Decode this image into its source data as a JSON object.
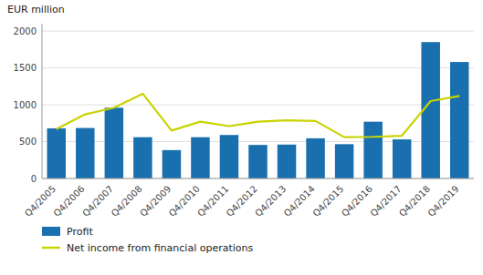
{
  "chart_data": {
    "type": "bar",
    "ylabel": "EUR million",
    "categories": [
      "Q4/2005",
      "Q4/2006",
      "Q4/2007",
      "Q4/2008",
      "Q4/2009",
      "Q4/2010",
      "Q4/2011",
      "Q4/2012",
      "Q4/2013",
      "Q4/2014",
      "Q4/2015",
      "Q4/2016",
      "Q4/2017",
      "Q4/2018",
      "Q4/2019"
    ],
    "series": [
      {
        "name": "Profit",
        "type": "bar",
        "color": "#1a6faf",
        "values": [
          680,
          685,
          960,
          560,
          385,
          560,
          590,
          455,
          460,
          545,
          465,
          770,
          530,
          1850,
          1580
        ]
      },
      {
        "name": "Net income from financial operations",
        "type": "line",
        "color": "#c8d400",
        "values": [
          670,
          870,
          960,
          1150,
          650,
          770,
          710,
          770,
          790,
          780,
          560,
          565,
          580,
          1050,
          1120
        ]
      }
    ],
    "ylim": [
      0,
      2100
    ],
    "yticks": [
      0,
      500,
      1000,
      1500,
      2000
    ],
    "grid": true,
    "legend": "bottom"
  }
}
